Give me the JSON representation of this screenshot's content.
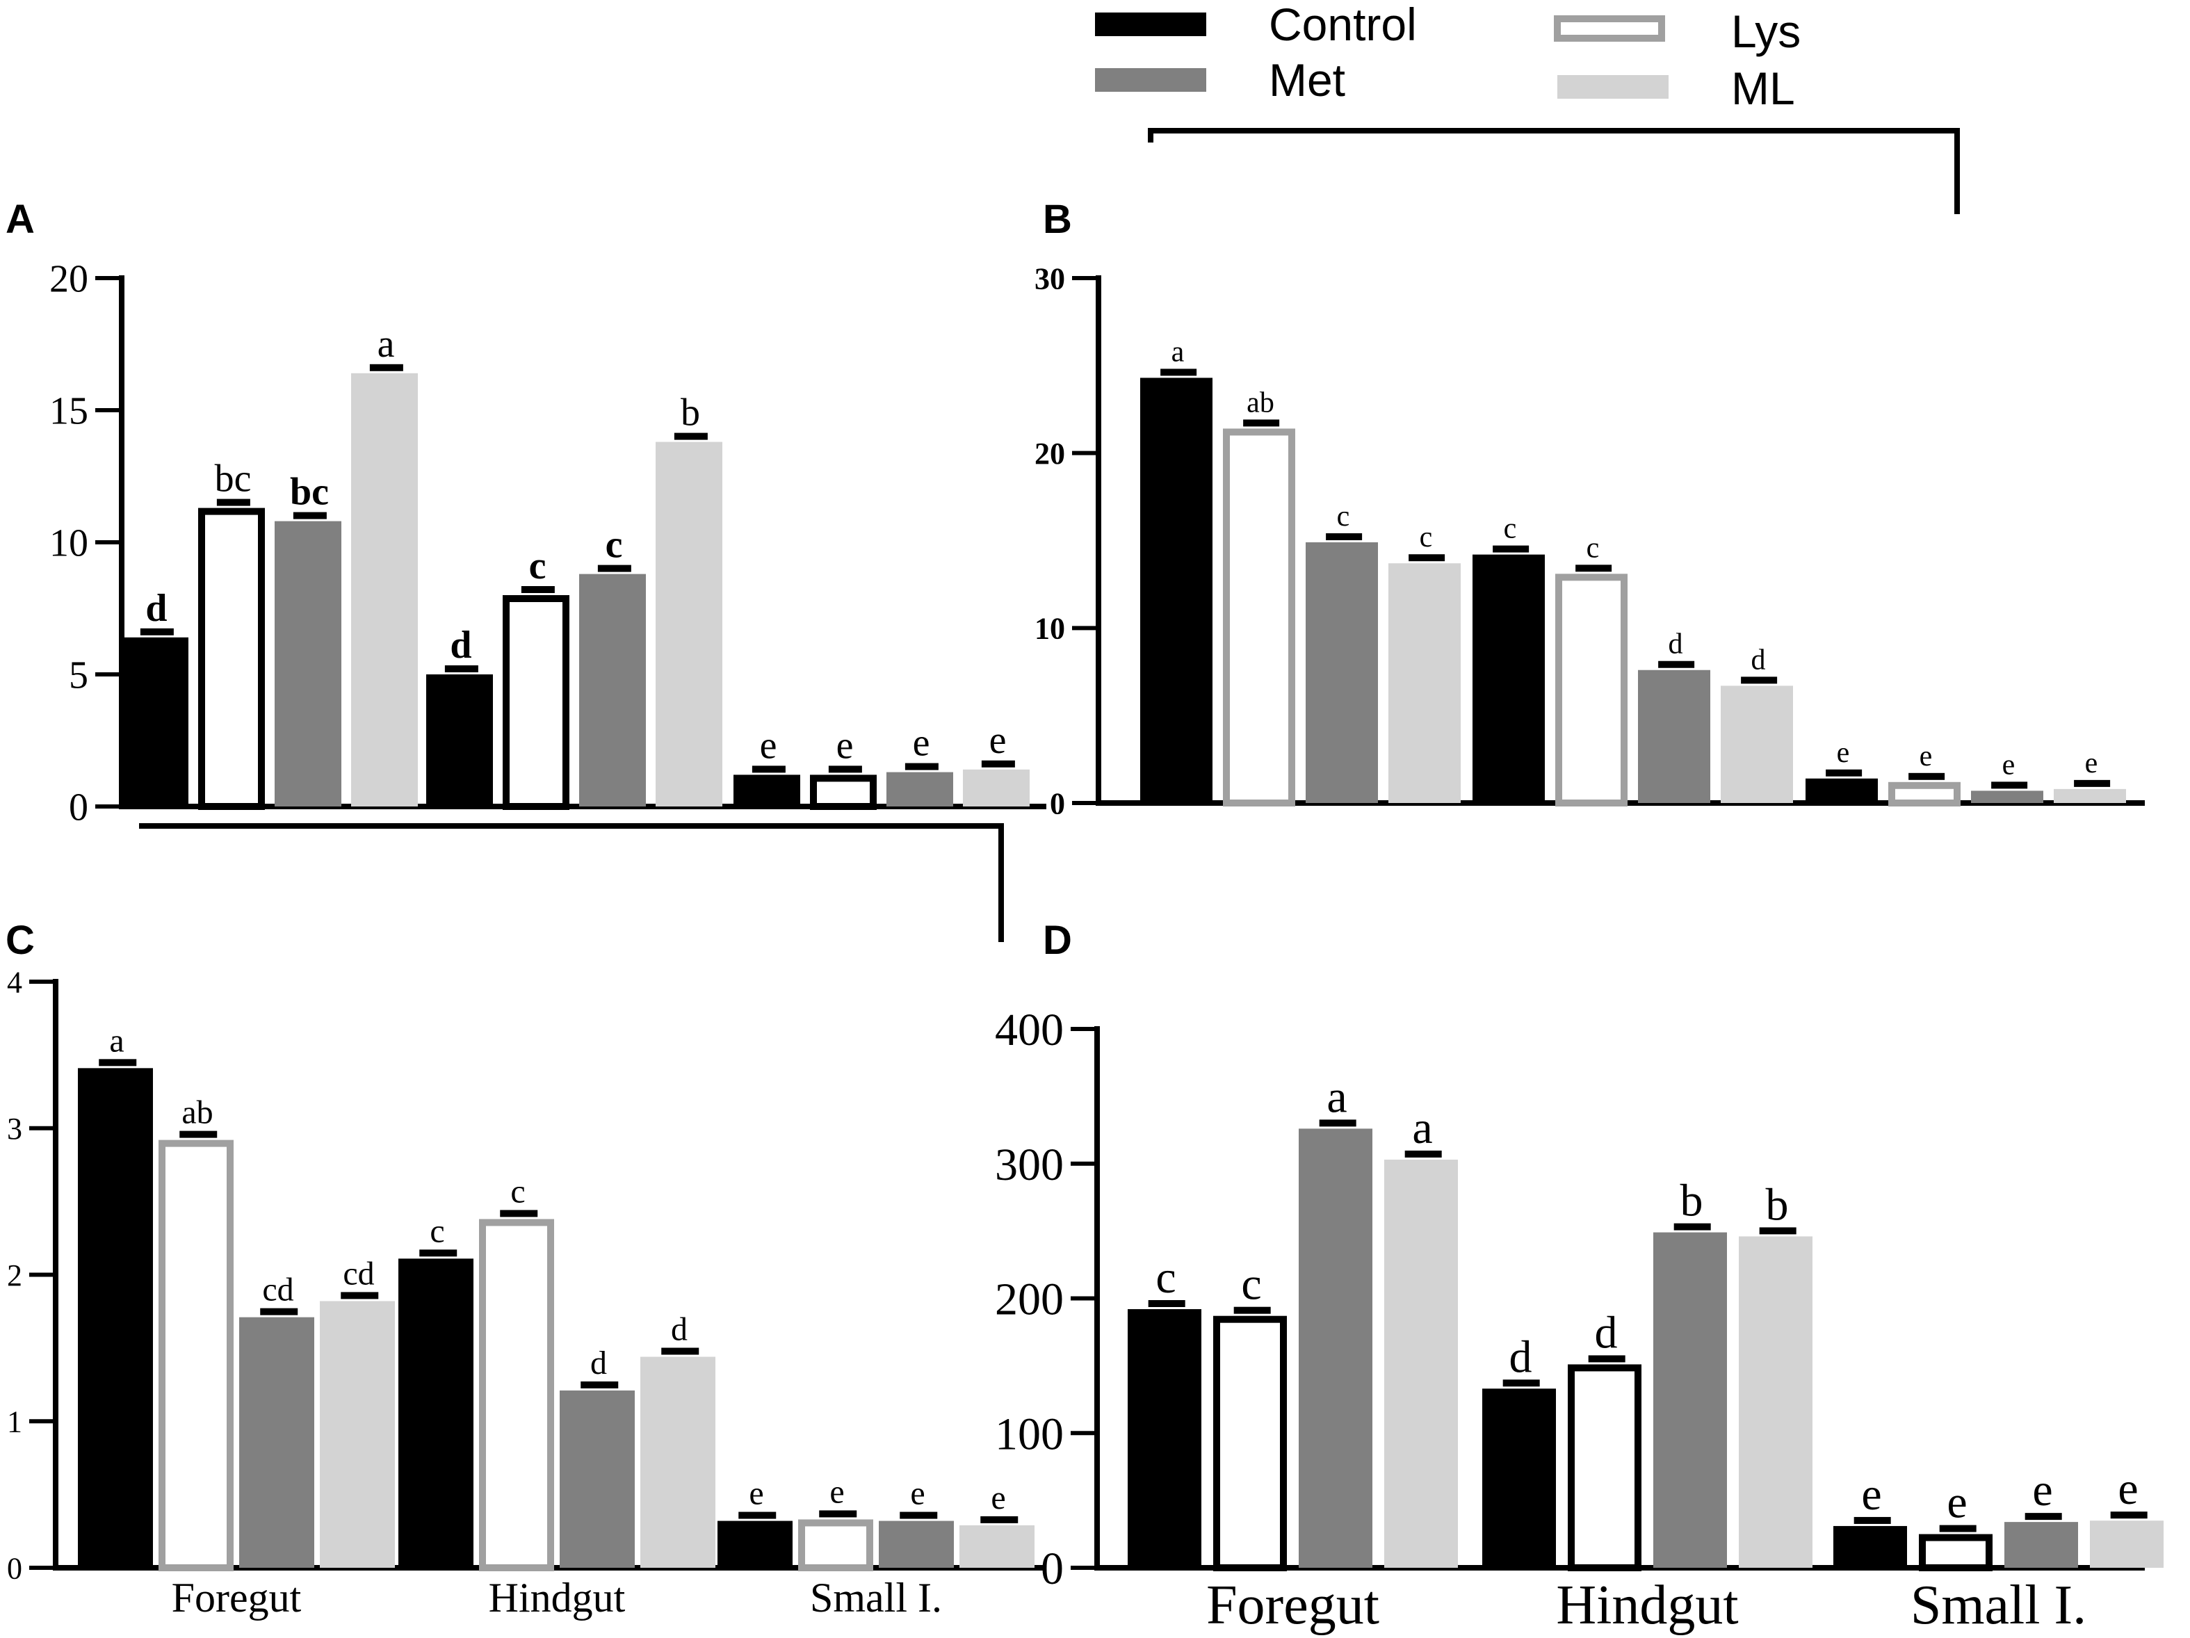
{
  "legend": [
    {
      "name": "Control",
      "style": "solid",
      "color": "#000000"
    },
    {
      "name": "Met",
      "style": "solid",
      "color": "#808080"
    },
    {
      "name": "Lys",
      "style": "outline",
      "color": "#a0a0a0"
    },
    {
      "name": "ML",
      "style": "solid",
      "color": "#d3d3d3"
    }
  ],
  "colors": {
    "control": "#000000",
    "met": "#808080",
    "lys_edge": "#a0a0a0",
    "ml": "#d3d3d3"
  },
  "chart_data": [
    {
      "panel": "A",
      "type": "bar",
      "categories": [],
      "ylim": [
        0,
        20
      ],
      "yticks": [
        "0",
        "5",
        "10",
        "15",
        "20"
      ],
      "bars": [
        {
          "group": 0,
          "series": "Control",
          "value": 6.4,
          "label": "d"
        },
        {
          "group": 0,
          "series": "Lys",
          "value": 11.3,
          "label": "bc"
        },
        {
          "group": 0,
          "series": "Met",
          "value": 10.8,
          "label": "bc"
        },
        {
          "group": 0,
          "series": "ML",
          "value": 16.4,
          "label": "a"
        },
        {
          "group": 1,
          "series": "Control",
          "value": 5.0,
          "label": "d"
        },
        {
          "group": 1,
          "series": "Lys",
          "value": 8.0,
          "label": "c"
        },
        {
          "group": 1,
          "series": "Met",
          "value": 8.8,
          "label": "c"
        },
        {
          "group": 1,
          "series": "ML",
          "value": 13.8,
          "label": "b"
        },
        {
          "group": 2,
          "series": "Control",
          "value": 1.2,
          "label": "e"
        },
        {
          "group": 2,
          "series": "Lys",
          "value": 1.2,
          "label": "e"
        },
        {
          "group": 2,
          "series": "Met",
          "value": 1.3,
          "label": "e"
        },
        {
          "group": 2,
          "series": "ML",
          "value": 1.4,
          "label": "e"
        }
      ]
    },
    {
      "panel": "B",
      "type": "bar",
      "categories": [],
      "ylim": [
        0,
        30
      ],
      "yticks": [
        "0",
        "10",
        "20",
        "30"
      ],
      "bars": [
        {
          "group": 0,
          "series": "Control",
          "value": 24.3,
          "label": "a"
        },
        {
          "group": 0,
          "series": "Lys",
          "value": 21.4,
          "label": "ab"
        },
        {
          "group": 0,
          "series": "Met",
          "value": 14.9,
          "label": "c"
        },
        {
          "group": 0,
          "series": "ML",
          "value": 13.7,
          "label": "c"
        },
        {
          "group": 1,
          "series": "Control",
          "value": 14.2,
          "label": "c"
        },
        {
          "group": 1,
          "series": "Lys",
          "value": 13.1,
          "label": "c"
        },
        {
          "group": 1,
          "series": "Met",
          "value": 7.6,
          "label": "d"
        },
        {
          "group": 1,
          "series": "ML",
          "value": 6.7,
          "label": "d"
        },
        {
          "group": 2,
          "series": "Control",
          "value": 1.4,
          "label": "e"
        },
        {
          "group": 2,
          "series": "Lys",
          "value": 1.2,
          "label": "e"
        },
        {
          "group": 2,
          "series": "Met",
          "value": 0.7,
          "label": "e"
        },
        {
          "group": 2,
          "series": "ML",
          "value": 0.8,
          "label": "e"
        }
      ]
    },
    {
      "panel": "C",
      "type": "bar",
      "categories": [
        "Foregut",
        "Hindgut",
        "Small I."
      ],
      "ylim": [
        0,
        4
      ],
      "yticks": [
        "0",
        "1",
        "2",
        "3",
        "4"
      ],
      "bars": [
        {
          "group": 0,
          "series": "Control",
          "value": 3.41,
          "label": "a"
        },
        {
          "group": 0,
          "series": "Lys",
          "value": 2.92,
          "label": "ab"
        },
        {
          "group": 0,
          "series": "Met",
          "value": 1.71,
          "label": "cd"
        },
        {
          "group": 0,
          "series": "ML",
          "value": 1.82,
          "label": "cd"
        },
        {
          "group": 1,
          "series": "Control",
          "value": 2.11,
          "label": "c"
        },
        {
          "group": 1,
          "series": "Lys",
          "value": 2.38,
          "label": "c"
        },
        {
          "group": 1,
          "series": "Met",
          "value": 1.21,
          "label": "d"
        },
        {
          "group": 1,
          "series": "ML",
          "value": 1.44,
          "label": "d"
        },
        {
          "group": 2,
          "series": "Control",
          "value": 0.32,
          "label": "e"
        },
        {
          "group": 2,
          "series": "Lys",
          "value": 0.33,
          "label": "e"
        },
        {
          "group": 2,
          "series": "Met",
          "value": 0.32,
          "label": "e"
        },
        {
          "group": 2,
          "series": "ML",
          "value": 0.29,
          "label": "e"
        }
      ]
    },
    {
      "panel": "D",
      "type": "bar",
      "categories": [
        "Foregut",
        "Hindgut",
        "Small I."
      ],
      "ylim": [
        0,
        400
      ],
      "yticks": [
        "0",
        "100",
        "200",
        "300",
        "400"
      ],
      "bars": [
        {
          "group": 0,
          "series": "Control",
          "value": 192,
          "label": "c"
        },
        {
          "group": 0,
          "series": "Lys",
          "value": 187,
          "label": "c"
        },
        {
          "group": 0,
          "series": "Met",
          "value": 326,
          "label": "a"
        },
        {
          "group": 0,
          "series": "ML",
          "value": 303,
          "label": "a"
        },
        {
          "group": 1,
          "series": "Control",
          "value": 133,
          "label": "d"
        },
        {
          "group": 1,
          "series": "Lys",
          "value": 151,
          "label": "d"
        },
        {
          "group": 1,
          "series": "Met",
          "value": 249,
          "label": "b"
        },
        {
          "group": 1,
          "series": "ML",
          "value": 246,
          "label": "b"
        },
        {
          "group": 2,
          "series": "Control",
          "value": 31,
          "label": "e"
        },
        {
          "group": 2,
          "series": "Lys",
          "value": 25,
          "label": "e"
        },
        {
          "group": 2,
          "series": "Met",
          "value": 34,
          "label": "e"
        },
        {
          "group": 2,
          "series": "ML",
          "value": 35,
          "label": "e"
        }
      ]
    }
  ]
}
